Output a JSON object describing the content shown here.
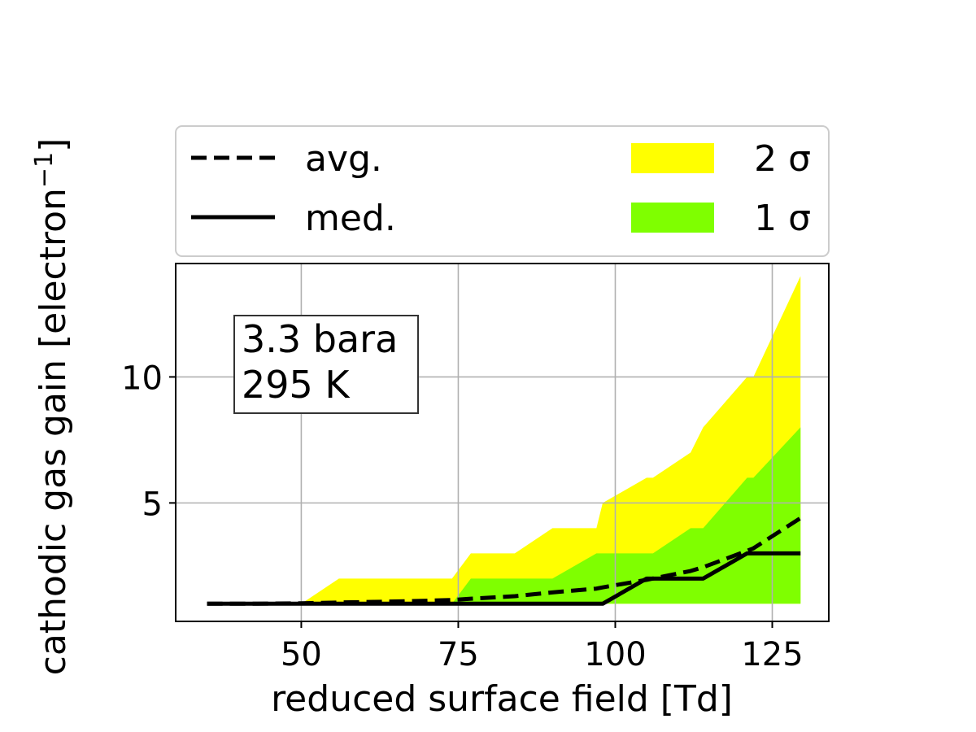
{
  "chart_data": {
    "type": "area",
    "xlabel": "reduced surface field [Td]",
    "ylabel": "cathodic gas gain [electron",
    "ylabel_superscript": "−1",
    "ylabel_close": "]",
    "xlim": [
      30,
      134
    ],
    "ylim": [
      0.3,
      14.5
    ],
    "xticks": [
      50,
      75,
      100,
      125
    ],
    "yticks": [
      5,
      10
    ],
    "grid": true,
    "legend_placement": "above",
    "annotation": [
      "3.3 bara",
      "295 K"
    ],
    "legend": {
      "avg": "avg.",
      "med": "med.",
      "sigma2": "2 σ",
      "sigma1": "1 σ"
    },
    "x": [
      35,
      43,
      50,
      56,
      63,
      70,
      74,
      77,
      84,
      90,
      97,
      98,
      105,
      106,
      112,
      114,
      121,
      122,
      129.5
    ],
    "series": [
      {
        "name": "avg.",
        "style": "dashed",
        "values": [
          1.0,
          1.0,
          1.02,
          1.05,
          1.08,
          1.12,
          1.15,
          1.2,
          1.3,
          1.45,
          1.6,
          1.65,
          1.95,
          2.0,
          2.3,
          2.45,
          3.1,
          3.2,
          4.4
        ]
      },
      {
        "name": "med.",
        "style": "solid",
        "values": [
          1,
          1,
          1,
          1,
          1,
          1,
          1,
          1,
          1,
          1,
          1,
          1,
          2,
          2,
          2,
          2,
          3,
          3,
          3
        ]
      }
    ],
    "bands": [
      {
        "name": "2 σ",
        "color": "#ffff00",
        "x": [
          35,
          50,
          56,
          63,
          70,
          74,
          77,
          84,
          90,
          97,
          98,
          105,
          106,
          112,
          114,
          121,
          122,
          129.5
        ],
        "upper": [
          1,
          1,
          2,
          2,
          2,
          2,
          3,
          3,
          4,
          4,
          5,
          6,
          6,
          7,
          8,
          10,
          10,
          14
        ],
        "lower": [
          1,
          1,
          1,
          1,
          1,
          1,
          1,
          1,
          1,
          1,
          1,
          1,
          1,
          1,
          1,
          1,
          1,
          1
        ]
      },
      {
        "name": "1 σ",
        "color": "#7fff00",
        "x": [
          35,
          74,
          77,
          84,
          90,
          97,
          98,
          105,
          106,
          112,
          114,
          121,
          122,
          129.5
        ],
        "upper": [
          1,
          1,
          2,
          2,
          2,
          3,
          3,
          3,
          3,
          4,
          4,
          6,
          6,
          8
        ],
        "lower": [
          1,
          1,
          1,
          1,
          1,
          1,
          1,
          1,
          1,
          1,
          1,
          1,
          1,
          1
        ]
      }
    ]
  }
}
